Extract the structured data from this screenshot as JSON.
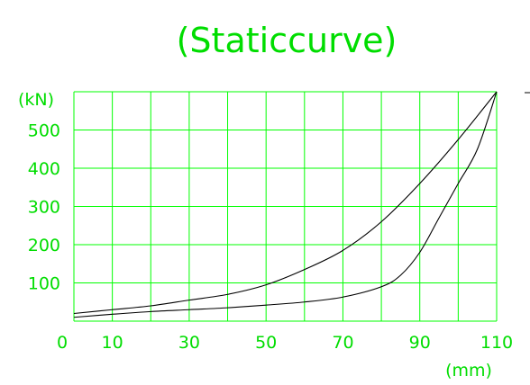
{
  "chart_data": {
    "type": "line",
    "title": "(Staticcurve)",
    "xlabel": "(mm)",
    "ylabel": "(kN)",
    "xlim": [
      0,
      110
    ],
    "ylim": [
      0,
      600
    ],
    "grid": true,
    "grid_color": "#00ff00",
    "text_color": "#00dd00",
    "line_color": "#000000",
    "x_tick_values": [
      0,
      10,
      30,
      50,
      70,
      90,
      110
    ],
    "x_tick_labels": [
      "0",
      "10",
      "30",
      "50",
      "70",
      "90",
      "110"
    ],
    "y_tick_values": [
      100,
      200,
      300,
      400,
      500
    ],
    "y_tick_labels": [
      "100",
      "200",
      "300",
      "400",
      "500"
    ],
    "x_grid": [
      0,
      10,
      20,
      30,
      40,
      50,
      60,
      70,
      80,
      90,
      100,
      110
    ],
    "y_grid": [
      0,
      100,
      200,
      300,
      400,
      500,
      600
    ],
    "series": [
      {
        "x": [
          0,
          10,
          20,
          30,
          40,
          50,
          60,
          70,
          80,
          90,
          100,
          110
        ],
        "y": [
          20,
          30,
          40,
          55,
          70,
          95,
          135,
          185,
          260,
          360,
          475,
          600
        ]
      },
      {
        "x": [
          0,
          10,
          20,
          30,
          40,
          50,
          60,
          70,
          80,
          85,
          90,
          95,
          100,
          105,
          110
        ],
        "y": [
          10,
          18,
          25,
          30,
          35,
          42,
          50,
          63,
          90,
          120,
          180,
          270,
          360,
          450,
          600
        ]
      }
    ]
  }
}
